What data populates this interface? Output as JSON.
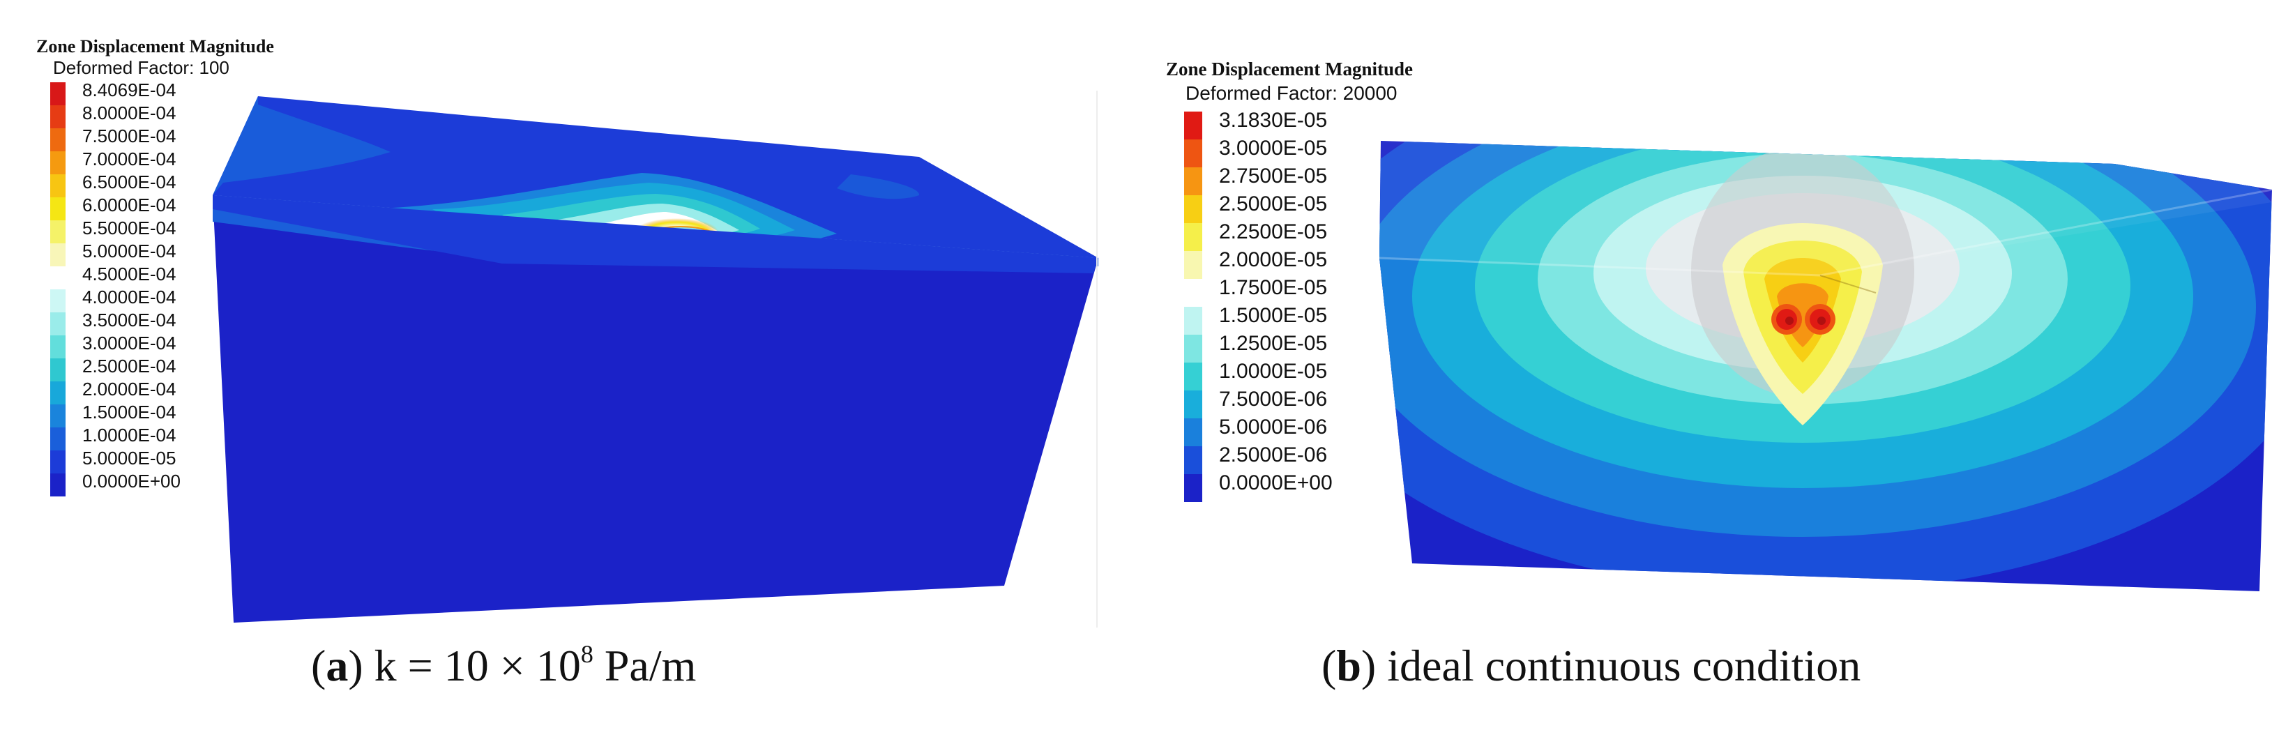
{
  "panels": [
    {
      "id": "a",
      "legend_title": "Zone Displacement Magnitude",
      "legend_subtitle": "Deformed Factor: 100",
      "legend": [
        {
          "label": "8.4069E-04",
          "color": "#d81818"
        },
        {
          "label": "8.0000E-04",
          "color": "#e63c14"
        },
        {
          "label": "7.5000E-04",
          "color": "#ee6a10"
        },
        {
          "label": "7.0000E-04",
          "color": "#f59a10"
        },
        {
          "label": "6.5000E-04",
          "color": "#f7c512"
        },
        {
          "label": "6.0000E-04",
          "color": "#f5e614"
        },
        {
          "label": "5.5000E-04",
          "color": "#f5f268"
        },
        {
          "label": "5.0000E-04",
          "color": "#f8f6b8"
        },
        {
          "label": "4.5000E-04",
          "color": "#ffffff"
        },
        {
          "label": "4.0000E-04",
          "color": "#cdf7f5"
        },
        {
          "label": "3.5000E-04",
          "color": "#9aecea"
        },
        {
          "label": "3.0000E-04",
          "color": "#62dedc"
        },
        {
          "label": "2.5000E-04",
          "color": "#2fc8d0"
        },
        {
          "label": "2.0000E-04",
          "color": "#18a8da"
        },
        {
          "label": "1.5000E-04",
          "color": "#1a84dc"
        },
        {
          "label": "1.0000E-04",
          "color": "#1a5fda"
        },
        {
          "label": "5.0000E-05",
          "color": "#1c3cd8"
        },
        {
          "label": "0.0000E+00",
          "color": "#1b22c8"
        }
      ],
      "caption_letter": "a",
      "caption_pre": "k = 10 × 10",
      "caption_sup": "8",
      "caption_post": " Pa/m"
    },
    {
      "id": "b",
      "legend_title": "Zone Displacement Magnitude",
      "legend_subtitle": "Deformed Factor: 20000",
      "legend": [
        {
          "label": "3.1830E-05",
          "color": "#e01a14"
        },
        {
          "label": "3.0000E-05",
          "color": "#ee5512"
        },
        {
          "label": "2.7500E-05",
          "color": "#f69512"
        },
        {
          "label": "2.5000E-05",
          "color": "#f7cf14"
        },
        {
          "label": "2.2500E-05",
          "color": "#f5ef4a"
        },
        {
          "label": "2.0000E-05",
          "color": "#f8f7b0"
        },
        {
          "label": "1.7500E-05",
          "color": "#ffffff"
        },
        {
          "label": "1.5000E-05",
          "color": "#bff4f1"
        },
        {
          "label": "1.2500E-05",
          "color": "#7ee6e2"
        },
        {
          "label": "1.0000E-05",
          "color": "#35d0d4"
        },
        {
          "label": "7.5000E-06",
          "color": "#19aedb"
        },
        {
          "label": "5.0000E-06",
          "color": "#1a80dc"
        },
        {
          "label": "2.5000E-06",
          "color": "#1a4fda"
        },
        {
          "label": "0.0000E+00",
          "color": "#1b22c8"
        }
      ],
      "caption_letter": "b",
      "caption_pre": "ideal continuous condition",
      "caption_sup": "",
      "caption_post": ""
    }
  ]
}
